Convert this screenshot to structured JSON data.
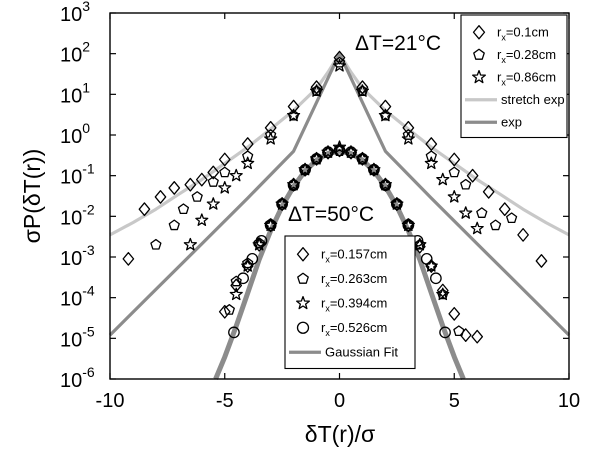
{
  "chart_data": {
    "type": "scatter",
    "xlabel": "δT(r)/σ",
    "ylabel": "σP(δT(r))",
    "xlim": [
      -10,
      10
    ],
    "ylim": [
      1e-06,
      1000
    ],
    "yscale": "log",
    "grid": false,
    "xticks": [
      -10,
      -5,
      0,
      5,
      10
    ],
    "xtick_labels": [
      "-10",
      "-5",
      "0",
      "5",
      "10"
    ],
    "yticks": [
      1e-06,
      1e-05,
      0.0001,
      0.001,
      0.01,
      0.1,
      1,
      10,
      100,
      1000
    ],
    "ytick_labels": [
      {
        "base": "10",
        "exp": "-6"
      },
      {
        "base": "10",
        "exp": "-5"
      },
      {
        "base": "10",
        "exp": "-4"
      },
      {
        "base": "10",
        "exp": "-3"
      },
      {
        "base": "10",
        "exp": "-2"
      },
      {
        "base": "10",
        "exp": "-1"
      },
      {
        "base": "10",
        "exp": "0"
      },
      {
        "base": "10",
        "exp": "1"
      },
      {
        "base": "10",
        "exp": "2"
      },
      {
        "base": "10",
        "exp": "3"
      }
    ],
    "annotations": {
      "upper": "ΔT=21°C",
      "lower": "ΔT=50°C"
    },
    "legend_upper": {
      "position": "top-right",
      "entries": [
        {
          "main": "r",
          "sub": "x",
          "rest": "=0.1cm",
          "marker": "diamond"
        },
        {
          "main": "r",
          "sub": "x",
          "rest": "=0.28cm",
          "marker": "pentagon"
        },
        {
          "main": "r",
          "sub": "x",
          "rest": "=0.86cm",
          "marker": "star"
        },
        {
          "label": "stretch exp",
          "line": true,
          "color": "#c8c8c8"
        },
        {
          "label": "exp",
          "line": true,
          "color": "#8c8c8c"
        }
      ]
    },
    "legend_lower": {
      "position": "center-bottom",
      "entries": [
        {
          "main": "r",
          "sub": "x",
          "rest": "=0.157cm",
          "marker": "diamond"
        },
        {
          "main": "r",
          "sub": "x",
          "rest": "=0.263cm",
          "marker": "pentagon"
        },
        {
          "main": "r",
          "sub": "x",
          "rest": "=0.394cm",
          "marker": "star"
        },
        {
          "main": "r",
          "sub": "x",
          "rest": "=0.526cm",
          "marker": "circle"
        },
        {
          "label": "Gaussian Fit",
          "line": true,
          "color": "#8c8c8c"
        }
      ]
    },
    "colors": {
      "stretch_exp": "#c8c8c8",
      "exp": "#8c8c8c",
      "gaussian": "#8c8c8c",
      "markers": "#000000"
    },
    "lines": {
      "stretch_exp": {
        "x": [
          -10,
          -9,
          -8,
          -7,
          -6,
          -5,
          -4,
          -3,
          -2,
          -1,
          -0.5,
          0,
          0.5,
          1,
          2,
          3,
          4,
          5,
          6,
          7,
          8,
          9,
          10
        ],
        "y": [
          0.0035,
          0.007,
          0.015,
          0.035,
          0.08,
          0.2,
          0.5,
          1.4,
          4,
          14,
          35,
          100,
          35,
          14,
          4,
          1.4,
          0.5,
          0.2,
          0.08,
          0.035,
          0.015,
          0.007,
          0.0035
        ]
      },
      "exp": {
        "x": [
          -10,
          -8,
          -6,
          -4,
          -2,
          0,
          2,
          4,
          6,
          8,
          10
        ],
        "y": [
          1.2e-05,
          0.00016,
          0.0021,
          0.028,
          0.4,
          100,
          0.4,
          0.028,
          0.0021,
          0.00016,
          1.2e-05
        ]
      },
      "gaussian": {
        "x": [
          -5.4,
          -5,
          -4.5,
          -4,
          -3.5,
          -3,
          -2.5,
          -2,
          -1.5,
          -1,
          -0.5,
          0,
          0.5,
          1,
          1.5,
          2,
          2.5,
          3,
          3.5,
          4,
          4.5,
          5,
          5.4
        ],
        "y": [
          1e-06,
          3.5e-06,
          2e-05,
          0.00013,
          0.00087,
          0.0044,
          0.0175,
          0.054,
          0.13,
          0.24,
          0.35,
          0.4,
          0.35,
          0.24,
          0.13,
          0.054,
          0.0175,
          0.0044,
          0.00087,
          0.00013,
          2e-05,
          3.5e-06,
          1e-06
        ]
      }
    },
    "series": [
      {
        "name": "r_x=0.1cm (ΔT=21°C)",
        "marker": "diamond",
        "x": [
          -9.2,
          -8.5,
          -7.8,
          -7.2,
          -6.5,
          -6,
          -5.5,
          -5,
          -4,
          -3,
          -2,
          -1,
          0,
          1,
          2,
          3,
          4,
          5,
          5.8,
          6.5,
          7.2,
          8,
          8.8
        ],
        "y": [
          0.0009,
          0.015,
          0.03,
          0.05,
          0.06,
          0.08,
          0.12,
          0.25,
          0.6,
          1.5,
          5,
          15,
          80,
          15,
          5,
          1.5,
          0.6,
          0.25,
          0.1,
          0.04,
          0.015,
          0.0035,
          0.0008
        ]
      },
      {
        "name": "r_x=0.28cm (ΔT=21°C)",
        "marker": "pentagon",
        "x": [
          -8,
          -7.2,
          -6.8,
          -6.2,
          -5.5,
          -5,
          -4,
          -3,
          -2,
          -1,
          0,
          1,
          2,
          3,
          4,
          5,
          5.5,
          6.2,
          6.8,
          7.5
        ],
        "y": [
          0.002,
          0.006,
          0.015,
          0.03,
          0.07,
          0.12,
          0.3,
          1,
          3,
          12,
          60,
          12,
          3,
          1,
          0.3,
          0.12,
          0.06,
          0.012,
          0.006,
          0.009
        ]
      },
      {
        "name": "r_x=0.86cm (ΔT=21°C)",
        "marker": "star",
        "x": [
          -6.5,
          -6,
          -5.5,
          -5,
          -4.5,
          -4,
          -3,
          -2,
          -1,
          0,
          1,
          2,
          3,
          4,
          4.5,
          5,
          5.5,
          6
        ],
        "y": [
          0.002,
          0.008,
          0.02,
          0.05,
          0.1,
          0.2,
          0.8,
          3,
          12,
          50,
          12,
          3,
          0.8,
          0.2,
          0.08,
          0.03,
          0.012,
          0.005
        ]
      },
      {
        "name": "r_x=0.157cm (ΔT=50°C)",
        "marker": "diamond",
        "x": [
          -5,
          -4.5,
          -4,
          -3.5,
          -3,
          -2.5,
          -2,
          -1.5,
          -1,
          -0.5,
          0,
          0.5,
          1,
          1.5,
          2,
          2.5,
          3,
          3.5,
          4,
          4.5,
          5,
          5.5,
          6
        ],
        "y": [
          4.5e-05,
          0.0002,
          0.0006,
          0.002,
          0.006,
          0.02,
          0.06,
          0.14,
          0.26,
          0.37,
          0.42,
          0.37,
          0.26,
          0.14,
          0.06,
          0.02,
          0.006,
          0.0018,
          0.0006,
          0.00015,
          4e-05,
          1.2e-05,
          1.1e-05
        ]
      },
      {
        "name": "r_x=0.263cm (ΔT=50°C)",
        "marker": "pentagon",
        "x": [
          -4.8,
          -4.5,
          -4,
          -3.5,
          -3,
          -2.5,
          -2,
          -1.5,
          -1,
          -0.5,
          0,
          0.5,
          1,
          1.5,
          2,
          2.5,
          3,
          3.5,
          4,
          4.5,
          5.2
        ],
        "y": [
          5e-05,
          0.00025,
          0.0007,
          0.0022,
          0.0065,
          0.021,
          0.058,
          0.14,
          0.25,
          0.36,
          0.4,
          0.36,
          0.25,
          0.14,
          0.058,
          0.021,
          0.0065,
          0.002,
          0.0006,
          0.00012,
          1.5e-05
        ]
      },
      {
        "name": "r_x=0.394cm (ΔT=50°C)",
        "marker": "star",
        "x": [
          -4.5,
          -4,
          -3.5,
          -3,
          -2.5,
          -2,
          -1.5,
          -1,
          -0.5,
          0,
          0.5,
          1,
          1.5,
          2,
          2.5,
          3,
          3.5,
          4,
          4.5
        ],
        "y": [
          0.00012,
          0.0006,
          0.002,
          0.006,
          0.02,
          0.06,
          0.14,
          0.26,
          0.38,
          0.5,
          0.38,
          0.26,
          0.14,
          0.06,
          0.02,
          0.006,
          0.002,
          0.0006,
          0.00012
        ]
      },
      {
        "name": "r_x=0.526cm (ΔT=50°C)",
        "marker": "circle",
        "x": [
          -4.6,
          -4.2,
          -3.8,
          -3.4,
          -3,
          -2.5,
          -2,
          -1.5,
          -1,
          -0.5,
          0,
          0.5,
          1,
          1.5,
          2,
          2.5,
          3,
          3.4,
          3.8,
          4.2,
          4.6
        ],
        "y": [
          1.4e-05,
          0.0003,
          0.0009,
          0.0025,
          0.006,
          0.02,
          0.058,
          0.14,
          0.26,
          0.38,
          0.42,
          0.38,
          0.26,
          0.14,
          0.058,
          0.02,
          0.006,
          0.0025,
          0.0009,
          0.0003,
          1.4e-05
        ]
      }
    ]
  }
}
